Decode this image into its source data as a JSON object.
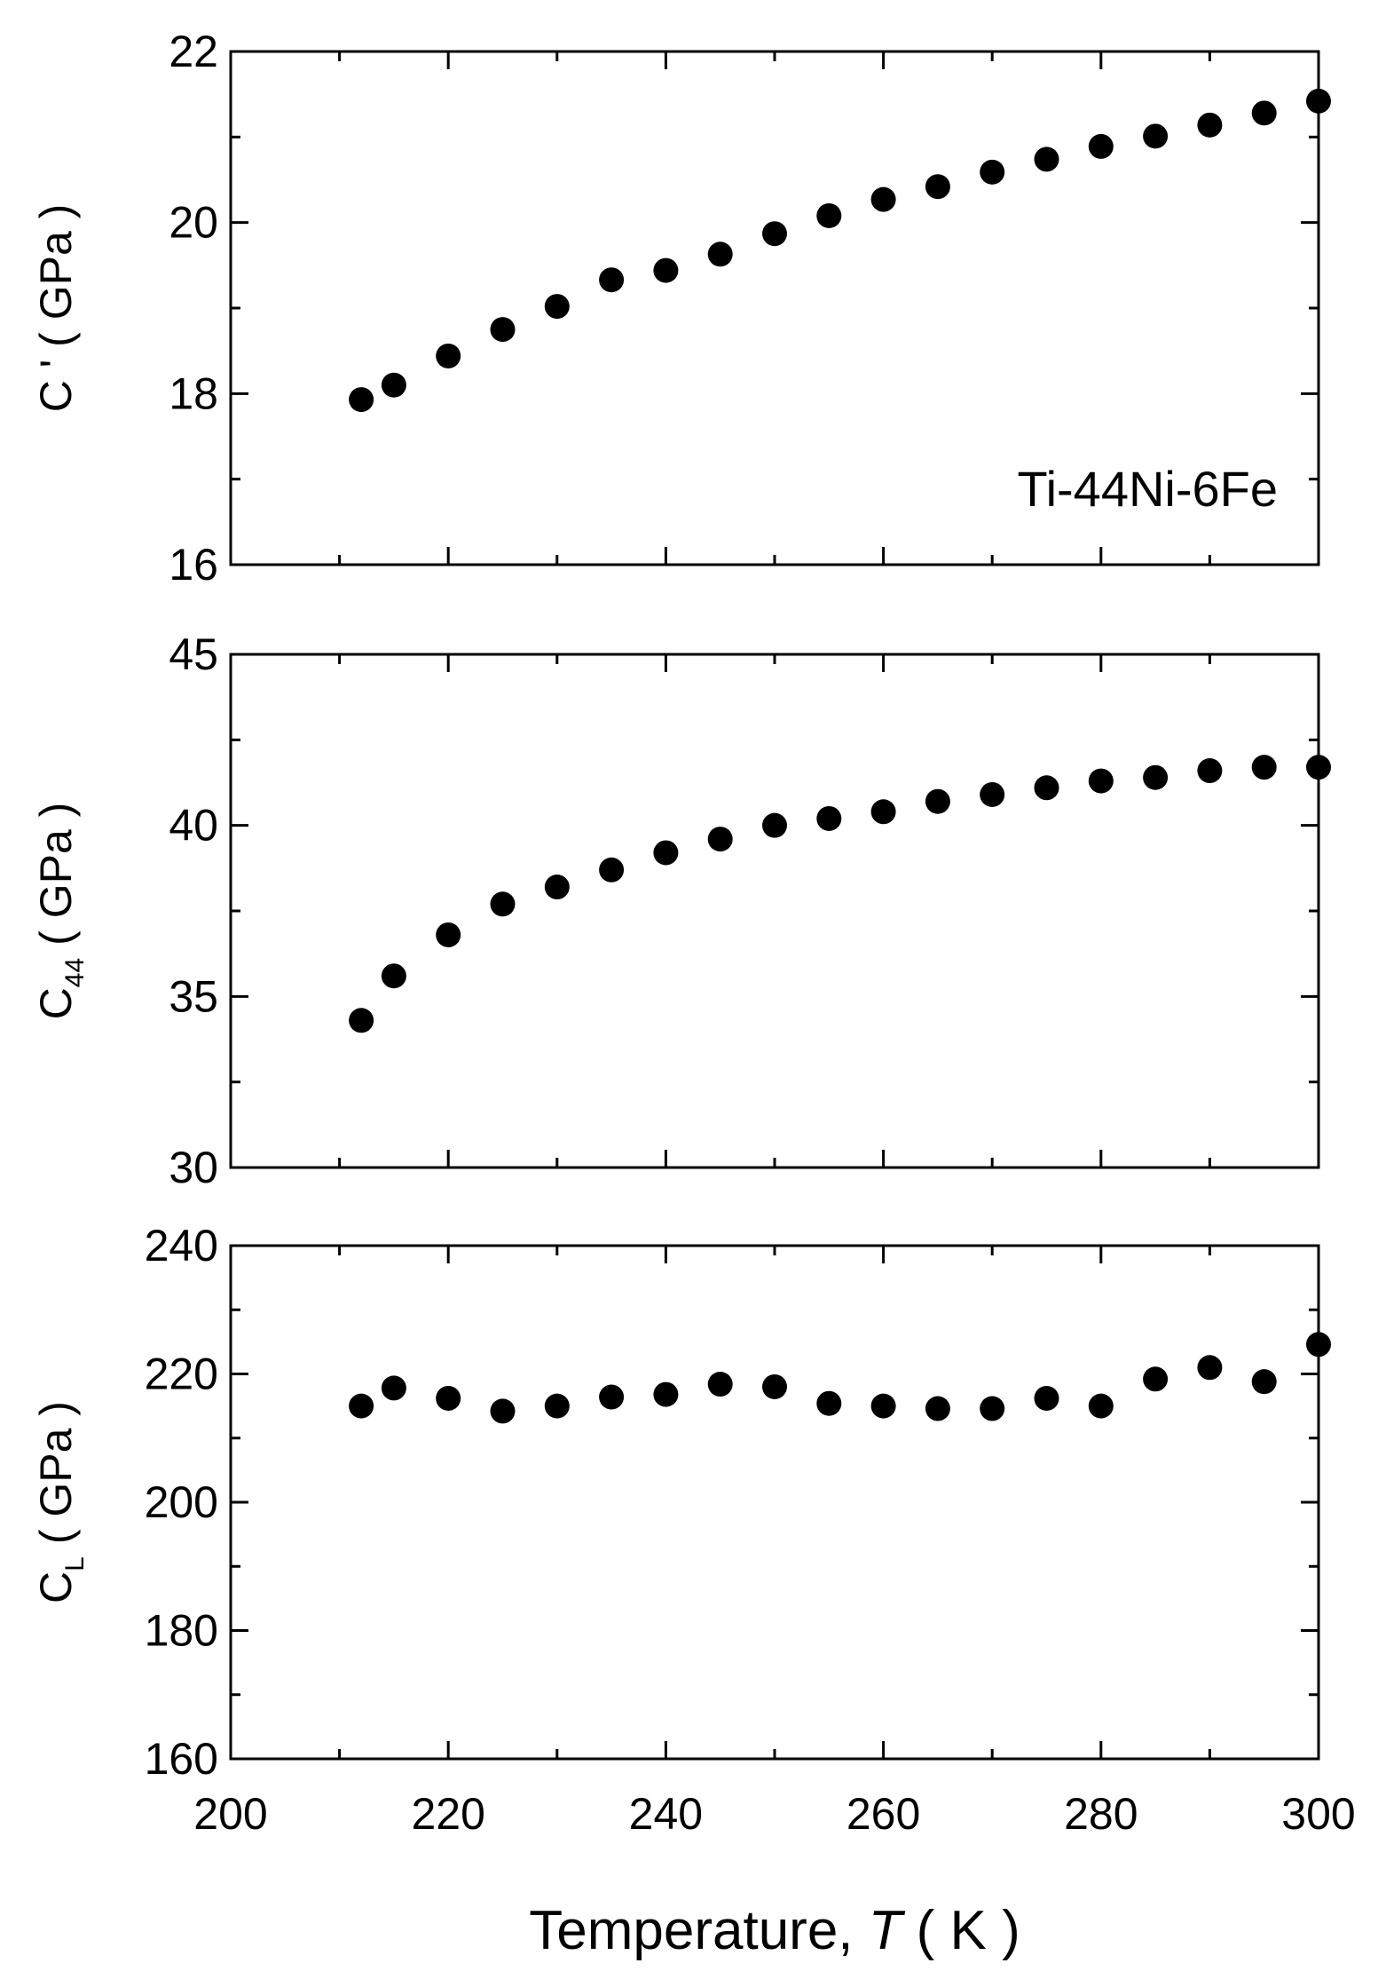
{
  "chart_data": [
    {
      "type": "scatter",
      "name": "cprime",
      "ylabel": {
        "main": "C ' ( GPa )"
      },
      "annotation": "Ti-44Ni-6Fe",
      "xlim": [
        200,
        300
      ],
      "ylim": [
        16,
        22
      ],
      "y_major_ticks": [
        16,
        18,
        20,
        22
      ],
      "y_tick_labels": [
        "16",
        "18",
        "20",
        "22"
      ],
      "x": [
        212,
        215,
        220,
        225,
        230,
        235,
        240,
        245,
        250,
        255,
        260,
        265,
        270,
        275,
        280,
        285,
        290,
        295,
        300
      ],
      "y": [
        17.93,
        18.1,
        18.44,
        18.75,
        19.02,
        19.33,
        19.44,
        19.63,
        19.87,
        20.08,
        20.27,
        20.42,
        20.59,
        20.74,
        20.89,
        21.01,
        21.14,
        21.28,
        21.42
      ]
    },
    {
      "type": "scatter",
      "name": "c44",
      "ylabel": {
        "main": "C",
        "sub": "44",
        "unit": "( GPa )"
      },
      "xlim": [
        200,
        300
      ],
      "ylim": [
        30,
        45
      ],
      "y_major_ticks": [
        30,
        35,
        40,
        45
      ],
      "y_tick_labels": [
        "30",
        "35",
        "40",
        "45"
      ],
      "x": [
        212,
        215,
        220,
        225,
        230,
        235,
        240,
        245,
        250,
        255,
        260,
        265,
        270,
        275,
        280,
        285,
        290,
        295,
        300
      ],
      "y": [
        34.3,
        35.6,
        36.8,
        37.7,
        38.2,
        38.7,
        39.2,
        39.6,
        40.0,
        40.2,
        40.4,
        40.7,
        40.9,
        41.1,
        41.3,
        41.4,
        41.6,
        41.7,
        41.7
      ]
    },
    {
      "type": "scatter",
      "name": "cl",
      "ylabel": {
        "main": "C",
        "sub": "L",
        "unit": "( GPa )"
      },
      "xlim": [
        200,
        300
      ],
      "ylim": [
        160,
        240
      ],
      "y_major_ticks": [
        160,
        180,
        200,
        220,
        240
      ],
      "y_tick_labels": [
        "160",
        "180",
        "200",
        "220",
        "240"
      ],
      "x": [
        212,
        215,
        220,
        225,
        230,
        235,
        240,
        245,
        250,
        255,
        260,
        265,
        270,
        275,
        280,
        285,
        290,
        295,
        300
      ],
      "y": [
        215.0,
        217.8,
        216.2,
        214.2,
        215.0,
        216.4,
        216.8,
        218.4,
        218.0,
        215.4,
        215.0,
        214.6,
        214.6,
        216.2,
        215.0,
        219.2,
        221.0,
        218.8,
        224.6
      ]
    }
  ],
  "x_axis": {
    "major_ticks": [
      200,
      220,
      240,
      260,
      280,
      300
    ],
    "tick_labels": [
      "200",
      "220",
      "240",
      "260",
      "280",
      "300"
    ],
    "label_text": "Temperature, ",
    "label_symbol": "T",
    "label_unit": "( K )"
  },
  "colors": {
    "marker": "#000000",
    "axes": "#000000",
    "background": "#ffffff"
  }
}
